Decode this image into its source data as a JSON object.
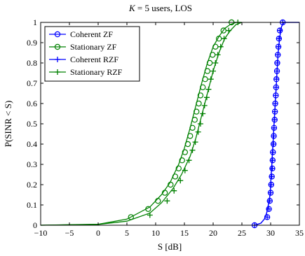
{
  "chart_data": {
    "type": "line",
    "title": {
      "prefix": "K",
      "eq": " = 5 users, LOS"
    },
    "xlabel": "S [dB]",
    "ylabel": "P(SINR < S)",
    "xlim": [
      -10,
      35
    ],
    "ylim": [
      0,
      1
    ],
    "xticks": [
      "−10",
      "−5",
      "0",
      "5",
      "10",
      "15",
      "20",
      "25",
      "30",
      "35"
    ],
    "xtick_values": [
      -10,
      -5,
      0,
      5,
      10,
      15,
      20,
      25,
      30,
      35
    ],
    "yticks": [
      "0",
      "0.1",
      "0.2",
      "0.3",
      "0.4",
      "0.5",
      "0.6",
      "0.7",
      "0.8",
      "0.9",
      "1"
    ],
    "ytick_values": [
      0,
      0.1,
      0.2,
      0.3,
      0.4,
      0.5,
      0.6,
      0.7,
      0.8,
      0.9,
      1
    ],
    "grid": false,
    "legend_position": "top-left",
    "series": [
      {
        "name": "Coherent ZF",
        "color": "#0000ff",
        "marker": "circle",
        "curve": [
          [
            27.2,
            0
          ],
          [
            28.3,
            0.01
          ],
          [
            28.9,
            0.03
          ],
          [
            29.3,
            0.06
          ],
          [
            29.6,
            0.1
          ],
          [
            29.9,
            0.15
          ],
          [
            30.1,
            0.25
          ],
          [
            30.3,
            0.35
          ],
          [
            30.5,
            0.45
          ],
          [
            30.7,
            0.55
          ],
          [
            30.9,
            0.65
          ],
          [
            31.1,
            0.75
          ],
          [
            31.3,
            0.85
          ],
          [
            31.6,
            0.93
          ],
          [
            31.9,
            0.98
          ],
          [
            32.3,
            1.0
          ],
          [
            35,
            1.0
          ]
        ],
        "markers": [
          [
            27.2,
            0
          ],
          [
            29.4,
            0.04
          ],
          [
            29.7,
            0.08
          ],
          [
            29.85,
            0.12
          ],
          [
            30.0,
            0.16
          ],
          [
            30.1,
            0.2
          ],
          [
            30.2,
            0.24
          ],
          [
            30.3,
            0.28
          ],
          [
            30.35,
            0.32
          ],
          [
            30.4,
            0.36
          ],
          [
            30.5,
            0.4
          ],
          [
            30.55,
            0.44
          ],
          [
            30.6,
            0.48
          ],
          [
            30.7,
            0.52
          ],
          [
            30.75,
            0.56
          ],
          [
            30.8,
            0.6
          ],
          [
            30.9,
            0.64
          ],
          [
            30.95,
            0.68
          ],
          [
            31.0,
            0.72
          ],
          [
            31.1,
            0.76
          ],
          [
            31.15,
            0.8
          ],
          [
            31.25,
            0.84
          ],
          [
            31.35,
            0.88
          ],
          [
            31.45,
            0.92
          ],
          [
            31.6,
            0.96
          ],
          [
            32.1,
            1.0
          ]
        ]
      },
      {
        "name": "Stationary ZF",
        "color": "#008000",
        "marker": "circle",
        "curve": [
          [
            -10,
            0
          ],
          [
            0,
            0.005
          ],
          [
            5,
            0.03
          ],
          [
            9,
            0.09
          ],
          [
            11,
            0.15
          ],
          [
            12.5,
            0.21
          ],
          [
            14,
            0.3
          ],
          [
            15,
            0.38
          ],
          [
            16,
            0.48
          ],
          [
            17,
            0.59
          ],
          [
            18,
            0.7
          ],
          [
            19,
            0.8
          ],
          [
            20,
            0.88
          ],
          [
            21,
            0.93
          ],
          [
            22,
            0.97
          ],
          [
            23,
            0.99
          ],
          [
            24,
            1.0
          ],
          [
            25,
            1.0
          ]
        ],
        "markers": [
          [
            5.7,
            0.04
          ],
          [
            8.7,
            0.08
          ],
          [
            10.4,
            0.12
          ],
          [
            11.6,
            0.16
          ],
          [
            12.6,
            0.2
          ],
          [
            13.4,
            0.24
          ],
          [
            14.0,
            0.28
          ],
          [
            14.6,
            0.32
          ],
          [
            15.1,
            0.36
          ],
          [
            15.6,
            0.4
          ],
          [
            16.0,
            0.44
          ],
          [
            16.4,
            0.48
          ],
          [
            16.8,
            0.52
          ],
          [
            17.1,
            0.56
          ],
          [
            17.5,
            0.6
          ],
          [
            17.8,
            0.64
          ],
          [
            18.2,
            0.68
          ],
          [
            18.6,
            0.72
          ],
          [
            19.0,
            0.76
          ],
          [
            19.4,
            0.8
          ],
          [
            19.9,
            0.84
          ],
          [
            20.4,
            0.88
          ],
          [
            21.0,
            0.92
          ],
          [
            21.8,
            0.96
          ],
          [
            23.2,
            1.0
          ]
        ]
      },
      {
        "name": "Coherent RZF",
        "color": "#0000ff",
        "marker": "plus",
        "curve": [
          [
            27.2,
            0
          ],
          [
            28.3,
            0.01
          ],
          [
            28.9,
            0.03
          ],
          [
            29.3,
            0.06
          ],
          [
            29.6,
            0.1
          ],
          [
            29.9,
            0.15
          ],
          [
            30.1,
            0.25
          ],
          [
            30.3,
            0.35
          ],
          [
            30.5,
            0.45
          ],
          [
            30.7,
            0.55
          ],
          [
            30.9,
            0.65
          ],
          [
            31.1,
            0.75
          ],
          [
            31.3,
            0.85
          ],
          [
            31.6,
            0.93
          ],
          [
            31.9,
            0.98
          ],
          [
            32.3,
            1.0
          ],
          [
            35,
            1.0
          ]
        ],
        "markers": [
          [
            27.2,
            0
          ],
          [
            29.4,
            0.04
          ],
          [
            29.7,
            0.08
          ],
          [
            29.85,
            0.12
          ],
          [
            30.0,
            0.16
          ],
          [
            30.1,
            0.2
          ],
          [
            30.2,
            0.24
          ],
          [
            30.3,
            0.28
          ],
          [
            30.35,
            0.32
          ],
          [
            30.4,
            0.36
          ],
          [
            30.5,
            0.4
          ],
          [
            30.55,
            0.44
          ],
          [
            30.6,
            0.48
          ],
          [
            30.7,
            0.52
          ],
          [
            30.75,
            0.56
          ],
          [
            30.8,
            0.6
          ],
          [
            30.9,
            0.64
          ],
          [
            30.95,
            0.68
          ],
          [
            31.0,
            0.72
          ],
          [
            31.1,
            0.76
          ],
          [
            31.15,
            0.8
          ],
          [
            31.25,
            0.84
          ],
          [
            31.35,
            0.88
          ],
          [
            31.45,
            0.92
          ],
          [
            31.6,
            0.96
          ],
          [
            32.1,
            1.0
          ]
        ]
      },
      {
        "name": "Stationary RZF",
        "color": "#008000",
        "marker": "plus",
        "curve": [
          [
            -10,
            0
          ],
          [
            0,
            0.004
          ],
          [
            5,
            0.02
          ],
          [
            9,
            0.06
          ],
          [
            11,
            0.11
          ],
          [
            13,
            0.18
          ],
          [
            14.5,
            0.25
          ],
          [
            16,
            0.34
          ],
          [
            17,
            0.43
          ],
          [
            18,
            0.54
          ],
          [
            19,
            0.65
          ],
          [
            20,
            0.76
          ],
          [
            21,
            0.85
          ],
          [
            22,
            0.92
          ],
          [
            23,
            0.96
          ],
          [
            24,
            0.99
          ],
          [
            25,
            1.0
          ]
        ],
        "markers": [
          [
            9.0,
            0.05
          ],
          [
            12.0,
            0.12
          ],
          [
            13.2,
            0.17
          ],
          [
            14.3,
            0.22
          ],
          [
            15.1,
            0.27
          ],
          [
            15.8,
            0.32
          ],
          [
            16.4,
            0.37
          ],
          [
            16.9,
            0.41
          ],
          [
            17.4,
            0.46
          ],
          [
            17.8,
            0.5
          ],
          [
            18.2,
            0.55
          ],
          [
            18.5,
            0.59
          ],
          [
            18.9,
            0.63
          ],
          [
            19.2,
            0.67
          ],
          [
            19.6,
            0.72
          ],
          [
            20.0,
            0.76
          ],
          [
            20.4,
            0.8
          ],
          [
            20.8,
            0.84
          ],
          [
            21.3,
            0.88
          ],
          [
            21.9,
            0.92
          ],
          [
            22.7,
            0.96
          ],
          [
            24.3,
            1.0
          ]
        ]
      }
    ]
  }
}
